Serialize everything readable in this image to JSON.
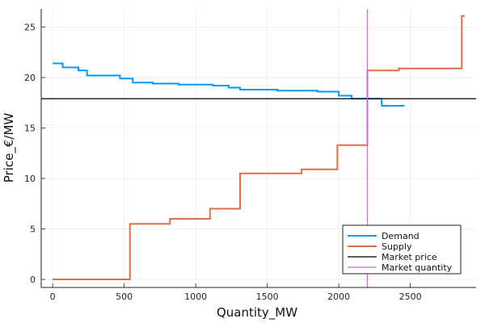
{
  "chart_data": {
    "type": "line",
    "xlabel": "Quantity_MW",
    "ylabel": "Price_€/MW",
    "xlim": [
      -80,
      2960
    ],
    "ylim": [
      -0.8,
      26.8
    ],
    "xticks": [
      0,
      500,
      1000,
      1500,
      2000,
      2500
    ],
    "yticks": [
      0,
      5,
      10,
      15,
      20,
      25
    ],
    "grid": true,
    "legend_position": "bottom-right",
    "series": [
      {
        "name": "Demand",
        "color": "#009AFA",
        "step": true,
        "x": [
          0,
          70,
          180,
          240,
          470,
          560,
          700,
          880,
          1120,
          1230,
          1310,
          1570,
          1850,
          2000,
          2090,
          2240,
          2300,
          2460
        ],
        "y": [
          21.4,
          21.0,
          20.7,
          20.2,
          19.9,
          19.5,
          19.4,
          19.3,
          19.2,
          19.0,
          18.8,
          18.7,
          18.6,
          18.2,
          17.9,
          17.9,
          17.2,
          17.2
        ]
      },
      {
        "name": "Supply",
        "color": "#E36F47",
        "step": true,
        "x": [
          0,
          540,
          820,
          1100,
          1310,
          1740,
          1990,
          2200,
          2420,
          2860,
          2880
        ],
        "y": [
          0.0,
          5.5,
          6.0,
          7.0,
          10.5,
          10.9,
          13.3,
          20.7,
          20.9,
          26.1,
          26.1
        ]
      },
      {
        "name": "Market price",
        "color": "#000000",
        "hline": 17.9
      },
      {
        "name": "Market quantity",
        "color": "#C271D2",
        "vline": 2200
      }
    ]
  }
}
